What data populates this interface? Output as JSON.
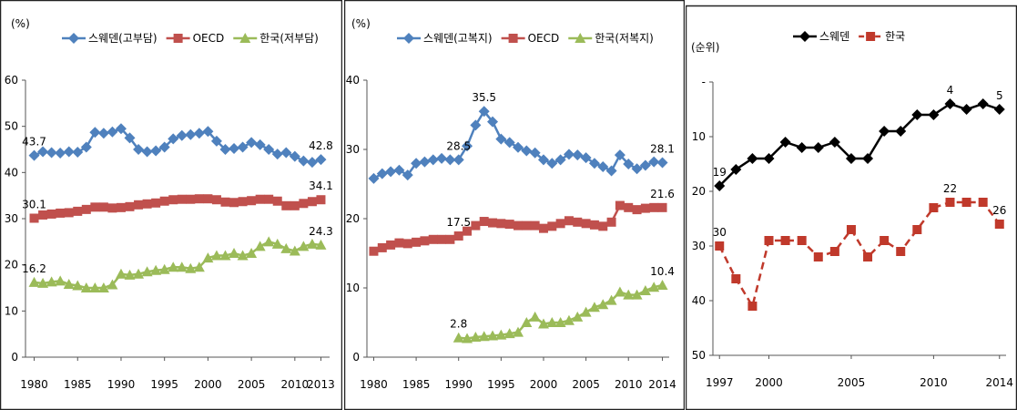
{
  "chart_data": [
    {
      "type": "line",
      "y_label": "(%)",
      "x": [
        1980,
        1981,
        1982,
        1983,
        1984,
        1985,
        1986,
        1987,
        1988,
        1989,
        1990,
        1991,
        1992,
        1993,
        1994,
        1995,
        1996,
        1997,
        1998,
        1999,
        2000,
        2001,
        2002,
        2003,
        2004,
        2005,
        2006,
        2007,
        2008,
        2009,
        2010,
        2011,
        2012,
        2013
      ],
      "xlim": [
        1979,
        2014
      ],
      "ylim": [
        0,
        60
      ],
      "xticks": [
        1980,
        1985,
        1990,
        1995,
        2000,
        2005,
        2010,
        2013
      ],
      "yticks": [
        0,
        10,
        20,
        30,
        40,
        50,
        60
      ],
      "grid": false,
      "series": [
        {
          "name": "스웨덴(고부담)",
          "color": "#4f81bd",
          "marker": "diamond",
          "values": [
            43.7,
            44.5,
            44.3,
            44.2,
            44.5,
            44.4,
            45.5,
            48.7,
            48.5,
            48.8,
            49.5,
            47.5,
            45,
            44.5,
            44.7,
            45.5,
            47.3,
            48,
            48.2,
            48.5,
            48.9,
            46.8,
            45,
            45.2,
            45.5,
            46.5,
            46,
            45,
            44,
            44.3,
            43.5,
            42.5,
            42.2,
            42.8
          ],
          "value_labels": {
            "0": "43.7",
            "33": "42.8"
          }
        },
        {
          "name": "OECD",
          "color": "#c0504d",
          "marker": "square",
          "values": [
            30.1,
            30.8,
            31,
            31.2,
            31.3,
            31.6,
            32,
            32.5,
            32.5,
            32.3,
            32.4,
            32.6,
            33,
            33.2,
            33.4,
            33.8,
            34.1,
            34.2,
            34.2,
            34.3,
            34.3,
            34.1,
            33.6,
            33.5,
            33.7,
            33.9,
            34.2,
            34.2,
            33.8,
            32.8,
            32.8,
            33.3,
            33.7,
            34.1
          ],
          "value_labels": {
            "0": "30.1",
            "33": "34.1"
          }
        },
        {
          "name": "한국(저부담)",
          "color": "#9bbb59",
          "marker": "triangle",
          "values": [
            16.2,
            16,
            16.3,
            16.5,
            15.8,
            15.5,
            15,
            15,
            15,
            15.7,
            18,
            17.8,
            18,
            18.5,
            18.8,
            19,
            19.5,
            19.5,
            19.2,
            19.5,
            21.5,
            22,
            22,
            22.5,
            22,
            22.5,
            24,
            25,
            24.5,
            23.5,
            23,
            24,
            24.5,
            24.3
          ],
          "value_labels": {
            "0": "16.2",
            "33": "24.3"
          }
        }
      ]
    },
    {
      "type": "line",
      "y_label": "(%)",
      "x": [
        1980,
        1981,
        1982,
        1983,
        1984,
        1985,
        1986,
        1987,
        1988,
        1989,
        1990,
        1991,
        1992,
        1993,
        1994,
        1995,
        1996,
        1997,
        1998,
        1999,
        2000,
        2001,
        2002,
        2003,
        2004,
        2005,
        2006,
        2007,
        2008,
        2009,
        2010,
        2011,
        2012,
        2013,
        2014
      ],
      "xlim": [
        1979.2,
        2014.8
      ],
      "ylim": [
        0,
        40
      ],
      "xticks": [
        1980,
        1985,
        1990,
        1995,
        2000,
        2005,
        2010,
        2014
      ],
      "yticks": [
        0,
        10,
        20,
        30,
        40
      ],
      "grid": false,
      "series": [
        {
          "name": "스웨덴(고복지)",
          "color": "#4f81bd",
          "marker": "diamond",
          "values": [
            25.8,
            26.5,
            26.8,
            27,
            26.3,
            28,
            28.2,
            28.5,
            28.7,
            28.5,
            28.5,
            30.5,
            33.5,
            35.5,
            34,
            31.5,
            31,
            30.3,
            29.8,
            29.5,
            28.5,
            28,
            28.5,
            29.3,
            29.2,
            28.8,
            28,
            27.5,
            26.9,
            29.2,
            27.9,
            27.2,
            27.7,
            28.2,
            28.1
          ],
          "value_labels": {
            "10": "28.5",
            "13": "35.5",
            "34": "28.1"
          }
        },
        {
          "name": "OECD",
          "color": "#c0504d",
          "marker": "square",
          "values": [
            15.3,
            15.8,
            16.2,
            16.5,
            16.4,
            16.6,
            16.8,
            17,
            17,
            17,
            17.5,
            18.2,
            19,
            19.6,
            19.4,
            19.3,
            19.2,
            19,
            19,
            19,
            18.6,
            18.9,
            19.3,
            19.7,
            19.5,
            19.3,
            19.1,
            18.9,
            19.5,
            21.9,
            21.6,
            21.3,
            21.5,
            21.6,
            21.6
          ],
          "value_labels": {
            "10": "17.5",
            "34": "21.6"
          }
        },
        {
          "name": "한국(저복지)",
          "color": "#9bbb59",
          "marker": "triangle",
          "values": [
            null,
            null,
            null,
            null,
            null,
            null,
            null,
            null,
            null,
            null,
            2.8,
            2.7,
            2.9,
            3,
            3.1,
            3.2,
            3.4,
            3.6,
            5,
            5.8,
            4.8,
            5,
            5,
            5.3,
            5.8,
            6.5,
            7.2,
            7.6,
            8.2,
            9.4,
            9,
            9,
            9.6,
            10.1,
            10.4
          ],
          "value_labels": {
            "10": "2.8",
            "34": "10.4"
          }
        }
      ]
    },
    {
      "type": "line",
      "y_label": "(순위)",
      "y_reversed": true,
      "x": [
        1997,
        1998,
        1999,
        2000,
        2001,
        2002,
        2003,
        2004,
        2005,
        2006,
        2007,
        2008,
        2009,
        2010,
        2011,
        2012,
        2013,
        2014
      ],
      "xlim": [
        1996.6,
        2014.4
      ],
      "ylim": [
        0,
        50
      ],
      "xticks": [
        1997,
        2000,
        2005,
        2010,
        2014
      ],
      "yticks": [
        {
          "value": 0,
          "label": "-"
        },
        10,
        20,
        30,
        40,
        50
      ],
      "grid": false,
      "series": [
        {
          "name": "스웨덴",
          "color": "#000000",
          "marker": "diamond",
          "dash": false,
          "values": [
            19,
            16,
            14,
            14,
            11,
            12,
            12,
            11,
            14,
            14,
            9,
            9,
            6,
            6,
            4,
            5,
            4,
            5
          ],
          "value_labels": {
            "0": "19",
            "14": "4",
            "17": "5"
          }
        },
        {
          "name": "한국",
          "color": "#c0392b",
          "marker": "square",
          "dash": true,
          "values": [
            30,
            36,
            41,
            29,
            29,
            29,
            32,
            31,
            27,
            32,
            29,
            31,
            27,
            23,
            22,
            22,
            22,
            26
          ],
          "value_labels": {
            "0": "30",
            "14": "22",
            "17": "26"
          }
        }
      ]
    }
  ]
}
